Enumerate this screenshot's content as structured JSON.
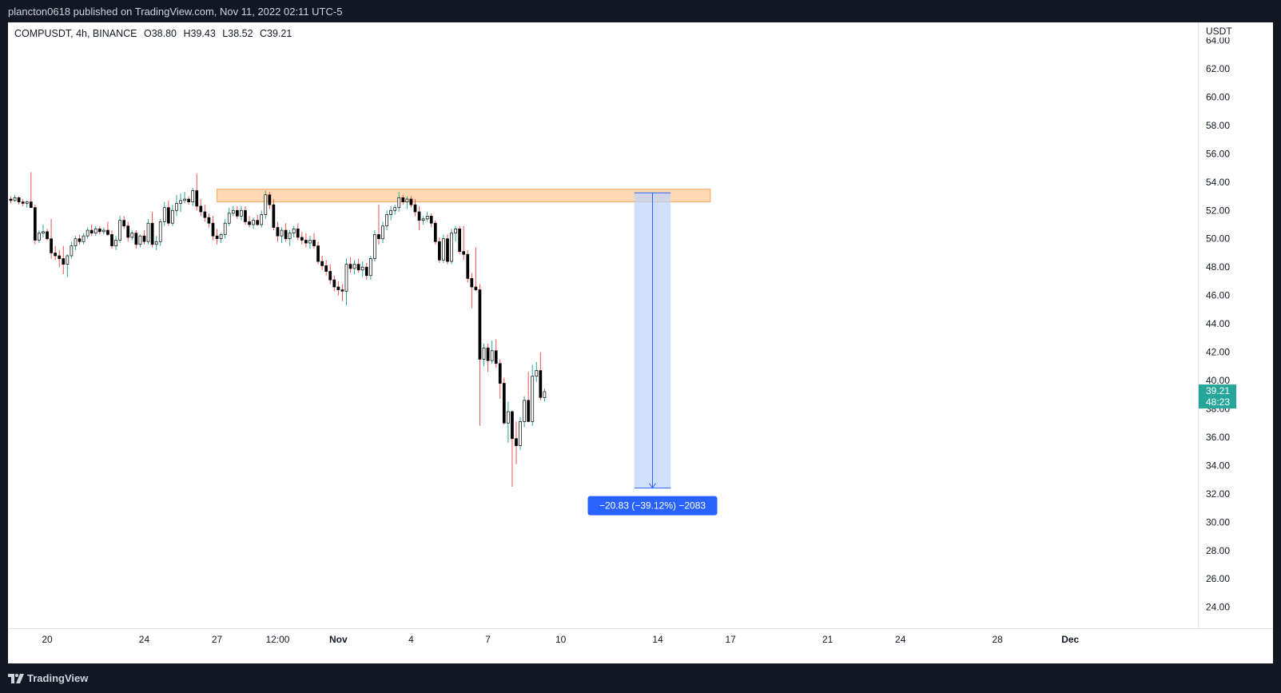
{
  "header": {
    "published_text": "plancton0618 published on TradingView.com, Nov 11, 2022 02:11 UTC-5"
  },
  "legend": {
    "symbol": "COMPUSDT, 4h, BINANCE",
    "open": "O38.80",
    "high": "H39.43",
    "low": "L38.52",
    "close": "C39.21"
  },
  "price_axis": {
    "currency": "USDT",
    "current_price_label": "39.21",
    "countdown_label": "48:23"
  },
  "measurement": {
    "label": "−20.83 (−39.12%) −2083"
  },
  "footer": {
    "brand": "TradingView"
  },
  "colors": {
    "up": "#26a69a",
    "down": "#ef5350",
    "zone_fill": "#ffcc99",
    "zone_border": "#f5a55a",
    "measure_fill": "#bcd2fb",
    "measure_label_bg": "#2962ff",
    "current_price_bg": "#26a69a"
  },
  "chart_data": {
    "type": "candlestick",
    "timeframe": "4h",
    "ylim": [
      22.5,
      64.0
    ],
    "y_ticks": [
      "24.00",
      "26.00",
      "28.00",
      "30.00",
      "32.00",
      "34.00",
      "36.00",
      "38.00",
      "40.00",
      "42.00",
      "44.00",
      "46.00",
      "48.00",
      "50.00",
      "52.00",
      "54.00",
      "56.00",
      "58.00",
      "60.00",
      "62.00",
      "64.00"
    ],
    "x_ticks": [
      {
        "label": "20",
        "bar": 9,
        "bold": false
      },
      {
        "label": "24",
        "bar": 33,
        "bold": false
      },
      {
        "label": "27",
        "bar": 51,
        "bold": false
      },
      {
        "label": "12:00",
        "bar": 66,
        "bold": false
      },
      {
        "label": "Nov",
        "bar": 81,
        "bold": true
      },
      {
        "label": "4",
        "bar": 99,
        "bold": false
      },
      {
        "label": "7",
        "bar": 118,
        "bold": false
      },
      {
        "label": "10",
        "bar": 136,
        "bold": false
      },
      {
        "label": "14",
        "bar": 160,
        "bold": false
      },
      {
        "label": "17",
        "bar": 178,
        "bold": false
      },
      {
        "label": "21",
        "bar": 202,
        "bold": false
      },
      {
        "label": "24",
        "bar": 220,
        "bold": false
      },
      {
        "label": "28",
        "bar": 244,
        "bold": false
      },
      {
        "label": "Dec",
        "bar": 262,
        "bold": true
      }
    ],
    "candles_ohlc": [
      [
        52.8,
        53.0,
        52.5,
        52.7
      ],
      [
        52.7,
        53.1,
        52.6,
        52.9
      ],
      [
        52.9,
        53.0,
        52.4,
        52.6
      ],
      [
        52.6,
        52.8,
        52.3,
        52.5
      ],
      [
        52.5,
        52.7,
        52.2,
        52.6
      ],
      [
        52.6,
        54.7,
        52.3,
        52.2
      ],
      [
        52.2,
        52.4,
        49.6,
        49.9
      ],
      [
        49.9,
        50.6,
        49.7,
        50.4
      ],
      [
        50.4,
        51.0,
        50.1,
        50.5
      ],
      [
        50.5,
        50.7,
        49.9,
        50.0
      ],
      [
        50.0,
        51.4,
        48.6,
        49.0
      ],
      [
        49.0,
        49.5,
        48.5,
        48.8
      ],
      [
        48.8,
        49.2,
        48.0,
        48.6
      ],
      [
        48.6,
        49.5,
        47.5,
        48.2
      ],
      [
        48.2,
        48.9,
        47.3,
        48.8
      ],
      [
        48.8,
        49.8,
        48.6,
        49.5
      ],
      [
        49.5,
        50.2,
        49.2,
        50.0
      ],
      [
        50.0,
        50.3,
        49.6,
        49.8
      ],
      [
        49.8,
        50.4,
        49.6,
        50.2
      ],
      [
        50.2,
        50.8,
        50.0,
        50.6
      ],
      [
        50.6,
        51.0,
        50.2,
        50.4
      ],
      [
        50.4,
        50.9,
        50.2,
        50.7
      ],
      [
        50.7,
        50.9,
        50.3,
        50.5
      ],
      [
        50.5,
        50.8,
        50.3,
        50.6
      ],
      [
        50.6,
        51.2,
        50.2,
        50.3
      ],
      [
        50.3,
        50.6,
        49.3,
        49.5
      ],
      [
        49.5,
        50.2,
        49.2,
        49.9
      ],
      [
        49.9,
        51.6,
        49.7,
        51.3
      ],
      [
        51.3,
        51.6,
        50.7,
        50.9
      ],
      [
        50.9,
        51.2,
        49.8,
        50.1
      ],
      [
        50.1,
        50.6,
        49.9,
        50.4
      ],
      [
        50.4,
        50.6,
        49.3,
        49.6
      ],
      [
        49.6,
        50.3,
        49.4,
        50.2
      ],
      [
        50.2,
        50.6,
        49.6,
        49.8
      ],
      [
        49.8,
        51.4,
        49.6,
        51.1
      ],
      [
        51.1,
        51.9,
        49.4,
        49.6
      ],
      [
        49.6,
        50.2,
        49.2,
        49.8
      ],
      [
        49.8,
        51.4,
        49.5,
        51.2
      ],
      [
        51.2,
        52.6,
        50.9,
        52.2
      ],
      [
        52.2,
        52.7,
        50.9,
        51.1
      ],
      [
        51.1,
        52.4,
        50.9,
        52.0
      ],
      [
        52.0,
        53.1,
        51.6,
        52.5
      ],
      [
        52.5,
        53.2,
        51.9,
        52.7
      ],
      [
        52.7,
        53.3,
        52.5,
        52.8
      ],
      [
        52.8,
        53.0,
        52.4,
        52.6
      ],
      [
        52.6,
        53.6,
        52.3,
        53.4
      ],
      [
        53.4,
        54.6,
        52.0,
        52.3
      ],
      [
        52.3,
        52.8,
        51.6,
        51.9
      ],
      [
        51.9,
        52.4,
        51.2,
        51.5
      ],
      [
        51.5,
        51.8,
        50.8,
        51.1
      ],
      [
        51.1,
        51.6,
        49.9,
        50.2
      ],
      [
        50.2,
        50.7,
        49.6,
        50.0
      ],
      [
        50.0,
        50.4,
        49.7,
        50.3
      ],
      [
        50.3,
        51.4,
        50.0,
        51.1
      ],
      [
        51.1,
        52.2,
        50.9,
        51.8
      ],
      [
        51.8,
        52.3,
        51.6,
        52.0
      ],
      [
        52.0,
        52.3,
        51.4,
        51.6
      ],
      [
        51.6,
        52.3,
        51.3,
        52.0
      ],
      [
        52.0,
        52.3,
        51.0,
        51.2
      ],
      [
        51.2,
        51.6,
        50.8,
        51.0
      ],
      [
        51.0,
        51.5,
        50.7,
        51.3
      ],
      [
        51.3,
        51.7,
        50.9,
        51.0
      ],
      [
        51.0,
        52.0,
        50.8,
        51.7
      ],
      [
        51.7,
        53.4,
        51.4,
        53.1
      ],
      [
        53.1,
        53.3,
        52.1,
        52.4
      ],
      [
        52.4,
        52.8,
        50.6,
        50.8
      ],
      [
        50.8,
        51.2,
        49.8,
        50.2
      ],
      [
        50.2,
        50.8,
        49.7,
        50.6
      ],
      [
        50.6,
        51.1,
        49.8,
        50.0
      ],
      [
        50.0,
        50.6,
        49.5,
        50.4
      ],
      [
        50.4,
        50.9,
        50.1,
        50.7
      ],
      [
        50.7,
        51.1,
        49.9,
        50.1
      ],
      [
        50.1,
        50.5,
        49.6,
        49.9
      ],
      [
        49.9,
        50.4,
        49.4,
        49.7
      ],
      [
        49.7,
        50.2,
        49.3,
        49.9
      ],
      [
        49.9,
        50.4,
        49.3,
        49.5
      ],
      [
        49.5,
        49.8,
        48.2,
        48.4
      ],
      [
        48.4,
        48.8,
        47.8,
        48.1
      ],
      [
        48.1,
        48.5,
        47.4,
        47.7
      ],
      [
        47.7,
        48.2,
        46.8,
        47.1
      ],
      [
        47.1,
        47.4,
        46.3,
        46.6
      ],
      [
        46.6,
        47.0,
        46.0,
        46.4
      ],
      [
        46.4,
        46.8,
        45.6,
        46.3
      ],
      [
        46.3,
        48.6,
        45.3,
        48.2
      ],
      [
        48.2,
        48.7,
        47.6,
        47.9
      ],
      [
        47.9,
        48.5,
        47.5,
        48.2
      ],
      [
        48.2,
        48.6,
        47.6,
        47.8
      ],
      [
        47.8,
        48.4,
        47.3,
        48.0
      ],
      [
        48.0,
        48.3,
        47.1,
        47.4
      ],
      [
        47.4,
        48.8,
        47.1,
        48.6
      ],
      [
        48.6,
        50.6,
        48.4,
        50.3
      ],
      [
        50.3,
        52.4,
        49.6,
        50.0
      ],
      [
        50.0,
        51.2,
        49.7,
        50.9
      ],
      [
        50.9,
        52.0,
        50.6,
        51.7
      ],
      [
        51.7,
        52.3,
        51.3,
        52.0
      ],
      [
        52.0,
        52.4,
        51.7,
        52.2
      ],
      [
        52.2,
        53.3,
        51.9,
        52.9
      ],
      [
        52.9,
        53.1,
        52.4,
        52.6
      ],
      [
        52.6,
        53.0,
        52.1,
        52.8
      ],
      [
        52.8,
        53.0,
        52.2,
        52.4
      ],
      [
        52.4,
        52.8,
        51.6,
        51.9
      ],
      [
        51.9,
        52.3,
        50.6,
        51.3
      ],
      [
        51.3,
        51.6,
        51.0,
        51.4
      ],
      [
        51.4,
        51.9,
        51.2,
        51.6
      ],
      [
        51.6,
        51.8,
        50.8,
        51.1
      ],
      [
        51.1,
        51.3,
        49.6,
        49.8
      ],
      [
        49.8,
        50.1,
        48.3,
        48.5
      ],
      [
        48.5,
        50.3,
        48.3,
        50.0
      ],
      [
        50.0,
        50.3,
        48.2,
        48.4
      ],
      [
        48.4,
        50.7,
        48.2,
        50.4
      ],
      [
        50.4,
        50.9,
        49.8,
        50.7
      ],
      [
        50.7,
        50.9,
        48.9,
        49.1
      ],
      [
        49.1,
        50.9,
        48.5,
        48.9
      ],
      [
        48.9,
        49.2,
        46.9,
        47.2
      ],
      [
        47.2,
        47.6,
        45.1,
        46.6
      ],
      [
        46.6,
        49.4,
        46.3,
        46.4
      ],
      [
        46.4,
        46.8,
        36.8,
        41.5
      ],
      [
        41.5,
        42.6,
        41.0,
        42.3
      ],
      [
        42.3,
        42.6,
        40.6,
        41.4
      ],
      [
        41.4,
        42.8,
        41.2,
        42.1
      ],
      [
        42.1,
        42.9,
        40.9,
        41.2
      ],
      [
        41.2,
        41.5,
        38.7,
        39.8
      ],
      [
        39.8,
        40.2,
        36.9,
        37.0
      ],
      [
        37.0,
        38.5,
        35.6,
        37.8
      ],
      [
        37.8,
        37.9,
        32.5,
        35.9
      ],
      [
        35.9,
        37.1,
        34.1,
        35.4
      ],
      [
        35.4,
        37.4,
        35.1,
        37.1
      ],
      [
        37.1,
        38.9,
        36.7,
        38.6
      ],
      [
        38.6,
        40.6,
        38.2,
        37.1
      ],
      [
        37.1,
        41.1,
        36.8,
        40.3
      ],
      [
        40.3,
        41.3,
        39.9,
        40.7
      ],
      [
        40.7,
        42.0,
        38.6,
        38.8
      ],
      [
        38.8,
        39.43,
        38.52,
        39.21
      ]
    ],
    "resistance_zone": {
      "from_bar": 51,
      "to_bar": 173,
      "price_top": 53.5,
      "price_bottom": 52.6
    },
    "measurement": {
      "from_bar": 154,
      "to_bar": 163,
      "price_start": 53.24,
      "price_end": 32.41
    }
  }
}
